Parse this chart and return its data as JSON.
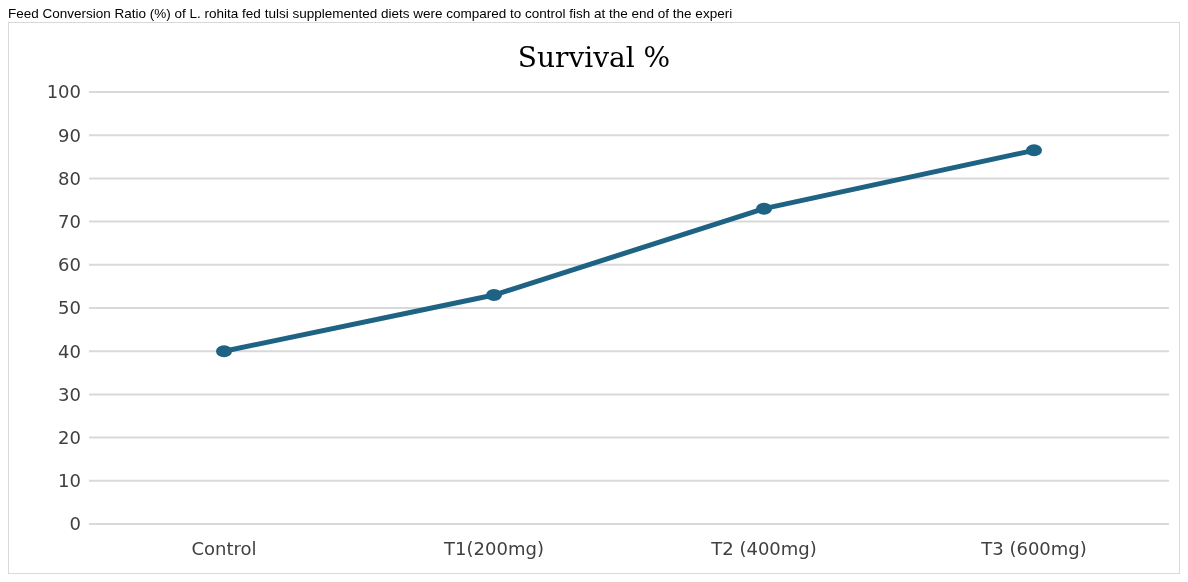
{
  "chart_data": {
    "type": "line",
    "title": "Survival %",
    "annotations": [
      "Feed Conversion Ratio (%) of L. rohita fed tulsi supplemented diets were compared to control fish at the end of the experi"
    ],
    "categories": [
      "Control",
      "T1(200mg)",
      "T2 (400mg)",
      "T3 (600mg)"
    ],
    "series": [
      {
        "color": "#1f6384",
        "values": [
          40,
          53,
          73,
          86.5
        ]
      }
    ],
    "ylim": [
      0,
      100
    ],
    "yticks": [
      0,
      10,
      20,
      30,
      40,
      50,
      60,
      70,
      80,
      90,
      100
    ],
    "grid": "y",
    "marker": "circle",
    "line_style": "solid"
  }
}
